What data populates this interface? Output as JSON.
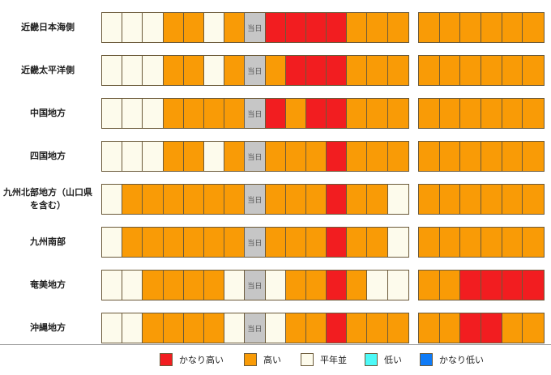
{
  "chart_data": {
    "type": "heatmap",
    "today_label": "当日",
    "categories": {
      "W": "平年並",
      "O": "高い",
      "R": "かなり高い",
      "T": "当日"
    },
    "colors": {
      "R": "#f21d20",
      "O": "#f99b06",
      "W": "#fdfbec",
      "T": "#c6c6c6",
      "C": "#4df9f7",
      "B": "#0f7bf7"
    },
    "rows": [
      {
        "name": "近畿日本海側",
        "daily": [
          "W",
          "W",
          "W",
          "O",
          "O",
          "W",
          "O",
          "T",
          "R",
          "R",
          "R",
          "R",
          "O",
          "O",
          "O"
        ],
        "weekly": [
          "O",
          "O",
          "O",
          "O",
          "O",
          "O"
        ]
      },
      {
        "name": "近畿太平洋側",
        "daily": [
          "W",
          "W",
          "W",
          "O",
          "O",
          "W",
          "O",
          "T",
          "O",
          "R",
          "R",
          "R",
          "O",
          "O",
          "O"
        ],
        "weekly": [
          "O",
          "O",
          "O",
          "O",
          "O",
          "O"
        ]
      },
      {
        "name": "中国地方",
        "daily": [
          "W",
          "W",
          "W",
          "O",
          "O",
          "O",
          "O",
          "T",
          "R",
          "O",
          "R",
          "R",
          "O",
          "O",
          "O"
        ],
        "weekly": [
          "O",
          "O",
          "O",
          "O",
          "O",
          "O"
        ]
      },
      {
        "name": "四国地方",
        "daily": [
          "W",
          "W",
          "W",
          "O",
          "O",
          "W",
          "O",
          "T",
          "O",
          "O",
          "O",
          "R",
          "O",
          "O",
          "O"
        ],
        "weekly": [
          "O",
          "O",
          "O",
          "O",
          "O",
          "O"
        ]
      },
      {
        "name": "九州北部地方（山口県を含む）",
        "daily": [
          "W",
          "O",
          "O",
          "O",
          "O",
          "O",
          "O",
          "T",
          "O",
          "O",
          "O",
          "R",
          "O",
          "O",
          "W"
        ],
        "weekly": [
          "O",
          "O",
          "O",
          "O",
          "O",
          "O"
        ]
      },
      {
        "name": "九州南部",
        "daily": [
          "W",
          "O",
          "O",
          "O",
          "O",
          "O",
          "O",
          "T",
          "O",
          "O",
          "O",
          "R",
          "O",
          "O",
          "W"
        ],
        "weekly": [
          "O",
          "O",
          "O",
          "O",
          "O",
          "O"
        ]
      },
      {
        "name": "奄美地方",
        "daily": [
          "W",
          "W",
          "O",
          "O",
          "O",
          "O",
          "W",
          "T",
          "W",
          "O",
          "O",
          "R",
          "O",
          "W",
          "W"
        ],
        "weekly": [
          "O",
          "O",
          "R",
          "R",
          "R",
          "R"
        ]
      },
      {
        "name": "沖縄地方",
        "daily": [
          "W",
          "W",
          "O",
          "O",
          "O",
          "O",
          "W",
          "T",
          "W",
          "O",
          "O",
          "R",
          "O",
          "O",
          "O"
        ],
        "weekly": [
          "O",
          "O",
          "R",
          "R",
          "O",
          "O"
        ]
      }
    ],
    "legend": [
      {
        "key": "R",
        "label": "かなり高い"
      },
      {
        "key": "O",
        "label": "高い"
      },
      {
        "key": "W",
        "label": "平年並"
      },
      {
        "key": "C",
        "label": "低い"
      },
      {
        "key": "B",
        "label": "かなり低い"
      }
    ]
  }
}
